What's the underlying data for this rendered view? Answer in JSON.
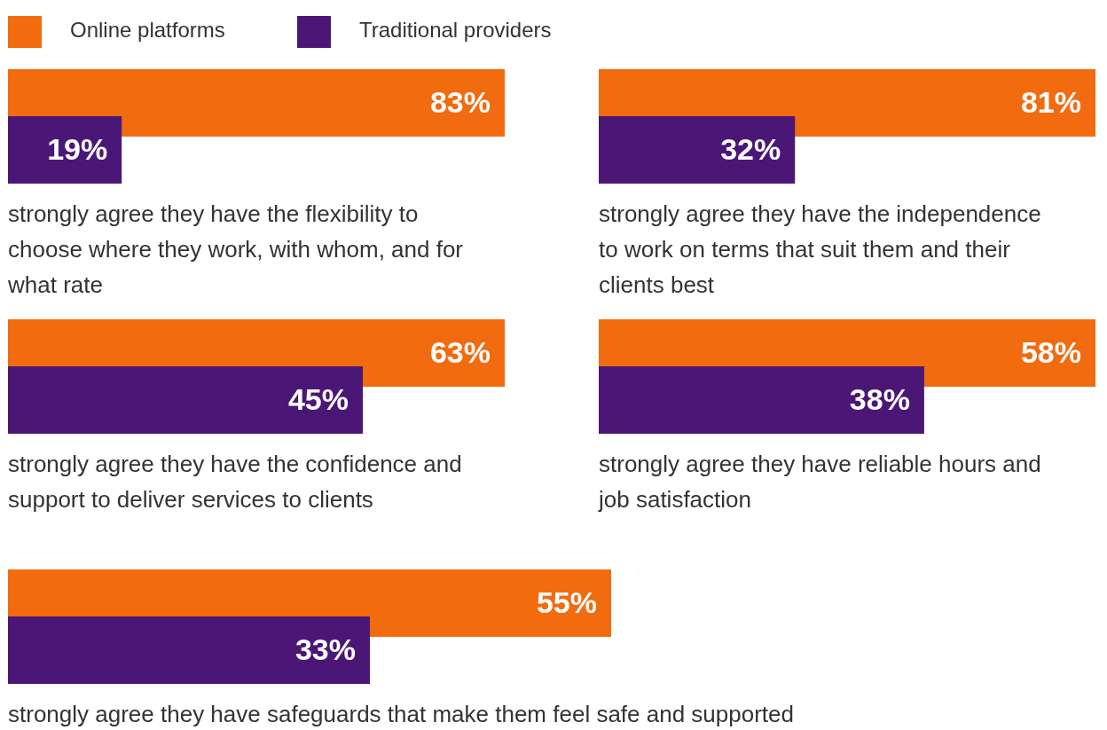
{
  "chart_data": [
    {
      "type": "bar",
      "orientation": "horizontal",
      "legend": "top left",
      "categories": [
        null
      ],
      "xlabel": "strongly agree they have the flexibility to choose where they work, with whom, and for what rate",
      "series": [
        {
          "name": "Online platforms",
          "color": "#f26b0f",
          "values": [
            83
          ],
          "value_labels": [
            "83%"
          ]
        },
        {
          "name": "Traditional providers",
          "color": "#4b1777",
          "values": [
            19
          ],
          "value_labels": [
            "19%"
          ]
        }
      ]
    },
    {
      "type": "bar",
      "orientation": "horizontal",
      "categories": [
        null
      ],
      "xlabel": "strongly agree they have the independence to work on terms that suit them and their clients best",
      "series": [
        {
          "color": "#f26b0f",
          "values": [
            81
          ],
          "value_labels": [
            "81%"
          ]
        },
        {
          "color": "#4b1777",
          "values": [
            32
          ],
          "value_labels": [
            "32%"
          ]
        }
      ]
    },
    {
      "type": "bar",
      "orientation": "horizontal",
      "categories": [
        null
      ],
      "xlabel": "strongly agree they have the confidence and support to deliver services to clients",
      "series": [
        {
          "color": "#f26b0f",
          "values": [
            63
          ],
          "value_labels": [
            "63%"
          ]
        },
        {
          "color": "#4b1777",
          "values": [
            45
          ],
          "value_labels": [
            "45%"
          ]
        }
      ]
    },
    {
      "type": "bar",
      "orientation": "horizontal",
      "categories": [
        null
      ],
      "xlabel": "strongly agree they have reliable hours and job satisfaction",
      "series": [
        {
          "color": "#f26b0f",
          "values": [
            58
          ],
          "value_labels": [
            "58%"
          ]
        },
        {
          "color": "#4b1777",
          "values": [
            38
          ],
          "value_labels": [
            "38%"
          ]
        }
      ]
    },
    {
      "type": "bar",
      "orientation": "horizontal",
      "categories": [
        null
      ],
      "xlabel": "strongly agree they have safeguards that make them feel safe and supported",
      "series": [
        {
          "color": "#f26b0f",
          "values": [
            55
          ],
          "value_labels": [
            "55%"
          ]
        },
        {
          "color": "#4b1777",
          "values": [
            33
          ],
          "value_labels": [
            "33%"
          ]
        }
      ]
    }
  ]
}
